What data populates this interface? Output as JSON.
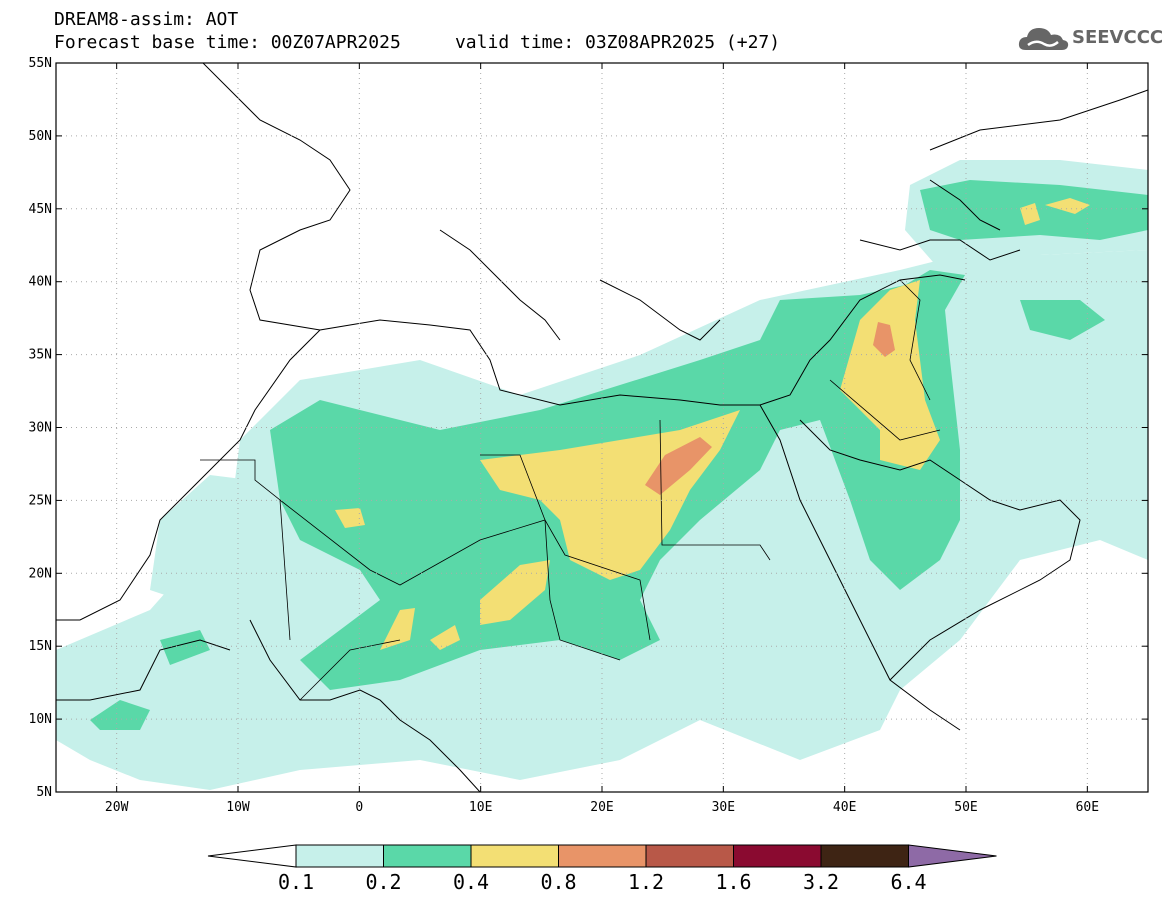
{
  "header": {
    "line1": "DREAM8-assim: AOT",
    "line2": "Forecast base time: 00Z07APR2025     valid time: 03Z08APR2025 (+27)",
    "logo_text": "SEEVCCC"
  },
  "map": {
    "lat_range": [
      5,
      55
    ],
    "lon_range": [
      -25,
      65
    ],
    "lat_labels": [
      "5N",
      "10N",
      "15N",
      "20N",
      "25N",
      "30N",
      "35N",
      "40N",
      "45N",
      "50N",
      "55N"
    ],
    "lat_values": [
      5,
      10,
      15,
      20,
      25,
      30,
      35,
      40,
      45,
      50,
      55
    ],
    "lon_labels": [
      "20W",
      "10W",
      "0",
      "10E",
      "20E",
      "30E",
      "40E",
      "50E",
      "60E"
    ],
    "lon_values": [
      -20,
      -10,
      0,
      10,
      20,
      30,
      40,
      50,
      60
    ]
  },
  "legend": {
    "thresholds": [
      "0.1",
      "0.2",
      "0.4",
      "0.8",
      "1.2",
      "1.6",
      "3.2",
      "6.4"
    ],
    "colors": [
      "#c6f0ea",
      "#5ad8a8",
      "#f3df74",
      "#e89468",
      "#b85848",
      "#8a0a30",
      "#3e2414",
      "#8e6aa6"
    ],
    "under_color": "#ffffff"
  }
}
